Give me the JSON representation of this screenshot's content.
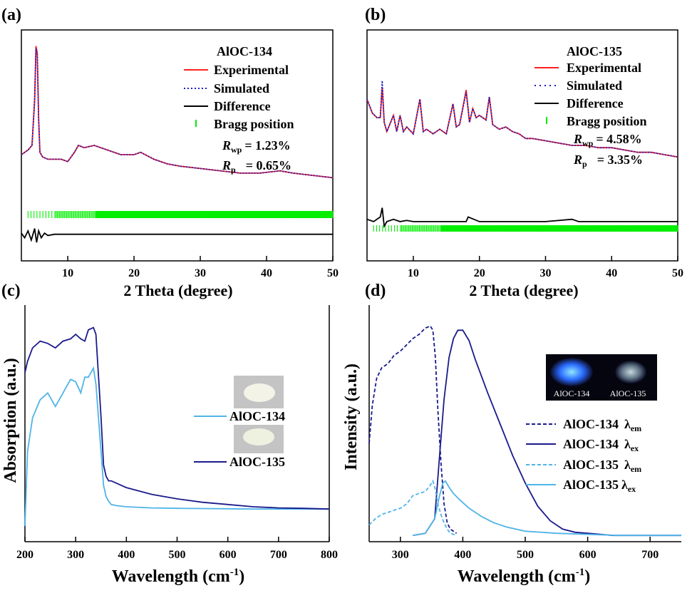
{
  "chart_data": [
    {
      "panel": "(a)",
      "type": "line",
      "xlabel": "2 Theta (degree)",
      "ylabel": "",
      "xlim": [
        3,
        50
      ],
      "xticks": [
        10,
        20,
        30,
        40,
        50
      ],
      "title": "AlOC-134",
      "legend": {
        "position": "top-right",
        "entries": [
          "Experimental",
          "Simulated",
          "Difference",
          "Bragg position"
        ]
      },
      "annotations": {
        "rwp_label": "R",
        "rwp_sub": "wp",
        "rwp_value": "= 1.23%",
        "rp_label": "R",
        "rp_sub": "p",
        "rp_value": "= 0.65%"
      },
      "series": [
        {
          "name": "Experimental",
          "color": "#ff2020",
          "style": "solid",
          "x": [
            3,
            4,
            4.6,
            5,
            5.2,
            5.4,
            5.6,
            5.8,
            6.2,
            7,
            8,
            9,
            10,
            11,
            11.6,
            12.5,
            14,
            16,
            18,
            20,
            21,
            23,
            25,
            27,
            30,
            33,
            36,
            39,
            42,
            44,
            47,
            50
          ],
          "y": [
            0.46,
            0.48,
            0.5,
            0.7,
            0.93,
            0.9,
            0.62,
            0.47,
            0.45,
            0.44,
            0.44,
            0.44,
            0.43,
            0.47,
            0.5,
            0.49,
            0.5,
            0.48,
            0.46,
            0.46,
            0.47,
            0.44,
            0.42,
            0.41,
            0.4,
            0.39,
            0.38,
            0.38,
            0.39,
            0.38,
            0.37,
            0.36
          ]
        },
        {
          "name": "Simulated",
          "color": "#1f1fbf",
          "style": "dotted",
          "x": [
            3,
            4,
            4.6,
            5,
            5.2,
            5.4,
            5.6,
            5.8,
            6.2,
            7,
            8,
            9,
            10,
            11,
            11.6,
            12.5,
            14,
            16,
            18,
            20,
            21,
            23,
            25,
            27,
            30,
            33,
            36,
            39,
            42,
            44,
            47,
            50
          ],
          "y": [
            0.46,
            0.48,
            0.5,
            0.69,
            0.92,
            0.89,
            0.61,
            0.47,
            0.45,
            0.44,
            0.44,
            0.44,
            0.43,
            0.47,
            0.5,
            0.49,
            0.5,
            0.48,
            0.46,
            0.46,
            0.47,
            0.44,
            0.42,
            0.41,
            0.4,
            0.39,
            0.38,
            0.38,
            0.39,
            0.38,
            0.37,
            0.36
          ]
        },
        {
          "name": "Difference",
          "color": "#000000",
          "style": "solid",
          "x": [
            3,
            3.5,
            4,
            4.5,
            5,
            5.3,
            5.6,
            6,
            6.5,
            7,
            8,
            10,
            15,
            20,
            30,
            40,
            50
          ],
          "y": [
            0.12,
            0.1,
            0.13,
            0.09,
            0.14,
            0.08,
            0.13,
            0.1,
            0.12,
            0.11,
            0.115,
            0.115,
            0.115,
            0.115,
            0.115,
            0.115,
            0.115
          ]
        }
      ],
      "bragg_color": "#00ee00"
    },
    {
      "panel": "(b)",
      "type": "line",
      "xlabel": "2 Theta (degree)",
      "ylabel": "",
      "xlim": [
        3,
        50
      ],
      "xticks": [
        10,
        20,
        30,
        40,
        50
      ],
      "title": "AlOC-135",
      "legend": {
        "position": "top-right",
        "entries": [
          "Experimental",
          "Simulated",
          "Difference",
          "Bragg position"
        ]
      },
      "annotations": {
        "rwp_label": "R",
        "rwp_sub": "wp",
        "rwp_value": "= 4.58%",
        "rp_label": "R",
        "rp_sub": "p",
        "rp_value": "= 3.35%"
      },
      "series": [
        {
          "name": "Experimental",
          "color": "#ff2020",
          "style": "solid",
          "x": [
            3,
            3.8,
            4.5,
            5,
            5.3,
            5.6,
            6,
            7,
            7.5,
            8,
            8.5,
            9,
            10,
            11,
            11.5,
            12,
            13,
            14,
            15,
            16,
            16.5,
            17,
            18,
            18.5,
            19,
            19.5,
            20,
            21,
            21.5,
            22,
            23,
            24,
            25,
            26,
            27,
            28,
            30,
            32,
            34,
            36,
            38,
            40,
            42,
            44,
            46,
            48,
            50
          ],
          "y": [
            0.7,
            0.64,
            0.62,
            0.62,
            0.75,
            0.6,
            0.56,
            0.63,
            0.56,
            0.63,
            0.56,
            0.58,
            0.55,
            0.7,
            0.56,
            0.57,
            0.55,
            0.57,
            0.55,
            0.68,
            0.58,
            0.59,
            0.74,
            0.6,
            0.66,
            0.62,
            0.63,
            0.61,
            0.71,
            0.59,
            0.57,
            0.58,
            0.56,
            0.55,
            0.53,
            0.53,
            0.52,
            0.51,
            0.5,
            0.5,
            0.49,
            0.49,
            0.48,
            0.47,
            0.47,
            0.46,
            0.45
          ]
        },
        {
          "name": "Simulated",
          "color": "#1f1fbf",
          "style": "dotted",
          "x": [
            3,
            3.8,
            4.5,
            5,
            5.3,
            5.6,
            6,
            7,
            7.5,
            8,
            8.5,
            9,
            10,
            11,
            11.5,
            12,
            13,
            14,
            15,
            16,
            16.5,
            17,
            18,
            18.5,
            19,
            19.5,
            20,
            21,
            21.5,
            22,
            23,
            24,
            25,
            26,
            27,
            28,
            30,
            32,
            34,
            36,
            38,
            40,
            42,
            44,
            46,
            48,
            50
          ],
          "y": [
            0.7,
            0.64,
            0.62,
            0.62,
            0.78,
            0.6,
            0.56,
            0.63,
            0.56,
            0.63,
            0.56,
            0.58,
            0.55,
            0.7,
            0.56,
            0.57,
            0.55,
            0.57,
            0.55,
            0.68,
            0.58,
            0.59,
            0.73,
            0.6,
            0.66,
            0.62,
            0.63,
            0.61,
            0.71,
            0.59,
            0.57,
            0.58,
            0.56,
            0.55,
            0.53,
            0.53,
            0.52,
            0.51,
            0.5,
            0.5,
            0.49,
            0.49,
            0.48,
            0.47,
            0.47,
            0.46,
            0.45
          ]
        },
        {
          "name": "Difference",
          "color": "#000000",
          "style": "solid",
          "x": [
            3,
            4,
            5,
            5.3,
            5.6,
            6,
            7,
            8,
            9,
            10,
            12,
            15,
            18,
            18.3,
            20,
            25,
            30,
            34,
            35,
            40,
            45,
            50
          ],
          "y": [
            0.18,
            0.17,
            0.19,
            0.23,
            0.15,
            0.17,
            0.18,
            0.17,
            0.175,
            0.17,
            0.17,
            0.17,
            0.17,
            0.19,
            0.17,
            0.17,
            0.17,
            0.18,
            0.17,
            0.17,
            0.17,
            0.17
          ]
        }
      ],
      "bragg_color": "#00ee00"
    },
    {
      "panel": "(c)",
      "type": "line",
      "xlabel": "Wavelength (cm",
      "xlabel_sup": "-1",
      "xlabel_end": ")",
      "ylabel": "Absorption (a.u.)",
      "xlim": [
        200,
        800
      ],
      "xticks": [
        200,
        300,
        400,
        500,
        600,
        700,
        800
      ],
      "legend": {
        "position": "center-right",
        "entries": [
          "AlOC-134",
          "AlOC-135"
        ]
      },
      "series": [
        {
          "name": "AlOC-134",
          "color": "#4fb4e8",
          "x": [
            200,
            205,
            215,
            230,
            245,
            260,
            275,
            290,
            300,
            310,
            318,
            325,
            335,
            340,
            350,
            355,
            360,
            365,
            370,
            380,
            400,
            450,
            500,
            550,
            600,
            650,
            700,
            750,
            800
          ],
          "y": [
            0.07,
            0.4,
            0.55,
            0.63,
            0.66,
            0.6,
            0.66,
            0.72,
            0.71,
            0.66,
            0.73,
            0.73,
            0.77,
            0.7,
            0.4,
            0.25,
            0.2,
            0.18,
            0.165,
            0.16,
            0.155,
            0.15,
            0.148,
            0.147,
            0.146,
            0.145,
            0.145,
            0.145,
            0.145
          ]
        },
        {
          "name": "AlOC-135",
          "color": "#1a1a8c",
          "x": [
            200,
            205,
            215,
            230,
            245,
            260,
            275,
            290,
            300,
            310,
            318,
            325,
            335,
            340,
            350,
            355,
            360,
            365,
            370,
            380,
            400,
            450,
            500,
            550,
            600,
            650,
            700,
            750,
            800
          ],
          "y": [
            0.75,
            0.8,
            0.86,
            0.89,
            0.88,
            0.86,
            0.89,
            0.9,
            0.92,
            0.9,
            0.89,
            0.94,
            0.95,
            0.92,
            0.55,
            0.34,
            0.29,
            0.27,
            0.27,
            0.26,
            0.24,
            0.21,
            0.19,
            0.175,
            0.165,
            0.155,
            0.15,
            0.148,
            0.145
          ]
        }
      ],
      "inset_labels": []
    },
    {
      "panel": "(d)",
      "type": "line",
      "xlabel": "Wavelength (cm",
      "xlabel_sup": "-1",
      "xlabel_end": ")",
      "ylabel": "Intensity (a.u.)",
      "xlim": [
        250,
        750
      ],
      "xticks": [
        300,
        400,
        500,
        600,
        700
      ],
      "inset_labels": [
        "AlOC-134",
        "AlOC-135"
      ],
      "legend": {
        "position": "center-right",
        "entries": [
          {
            "name": "AlOC-134",
            "sym": "λ",
            "sub": "em"
          },
          {
            "name": "AlOC-134",
            "sym": "λ",
            "sub": "ex"
          },
          {
            "name": "AlOC-135",
            "sym": "λ",
            "sub": "em"
          },
          {
            "name": "AlOC-135",
            "sym": "λ",
            "sub": "ex"
          }
        ]
      },
      "series": [
        {
          "name": "AlOC-134 λem",
          "color": "#1a1a8c",
          "style": "dashed",
          "x": [
            250,
            255,
            262,
            270,
            280,
            290,
            300,
            310,
            320,
            330,
            340,
            348,
            352,
            356,
            360,
            365,
            370,
            375,
            380,
            390
          ],
          "y": [
            0.44,
            0.62,
            0.75,
            0.8,
            0.82,
            0.86,
            0.88,
            0.91,
            0.94,
            0.96,
            0.99,
            1.0,
            0.98,
            0.85,
            0.6,
            0.35,
            0.15,
            0.06,
            0.03,
            0.01
          ]
        },
        {
          "name": "AlOC-134 λex",
          "color": "#1a1a8c",
          "style": "solid",
          "x": [
            320,
            340,
            355,
            362,
            370,
            378,
            385,
            392,
            400,
            410,
            420,
            440,
            460,
            480,
            500,
            520,
            540,
            560,
            580,
            600,
            640,
            680,
            720,
            750
          ],
          "y": [
            0.0,
            0.01,
            0.08,
            0.35,
            0.65,
            0.85,
            0.94,
            0.98,
            0.98,
            0.93,
            0.84,
            0.68,
            0.53,
            0.38,
            0.25,
            0.14,
            0.07,
            0.03,
            0.015,
            0.01,
            0.0,
            0.0,
            0.0,
            0.0
          ]
        },
        {
          "name": "AlOC-135 λem",
          "color": "#4fb4e8",
          "style": "dashed",
          "x": [
            250,
            260,
            270,
            280,
            290,
            300,
            310,
            320,
            330,
            340,
            348,
            352,
            356,
            360,
            365,
            370,
            375,
            380,
            390
          ],
          "y": [
            0.05,
            0.08,
            0.1,
            0.11,
            0.12,
            0.13,
            0.15,
            0.19,
            0.2,
            0.21,
            0.24,
            0.26,
            0.22,
            0.15,
            0.1,
            0.06,
            0.03,
            0.01,
            0.0
          ]
        },
        {
          "name": "AlOC-135 λex",
          "color": "#4fb4e8",
          "style": "solid",
          "x": [
            320,
            340,
            355,
            362,
            368,
            372,
            378,
            385,
            395,
            410,
            430,
            450,
            470,
            500,
            550,
            600,
            650,
            700,
            750
          ],
          "y": [
            0.0,
            0.01,
            0.08,
            0.18,
            0.25,
            0.26,
            0.23,
            0.2,
            0.17,
            0.13,
            0.09,
            0.06,
            0.04,
            0.02,
            0.01,
            0.005,
            0.0,
            0.0,
            0.0
          ]
        }
      ]
    }
  ]
}
